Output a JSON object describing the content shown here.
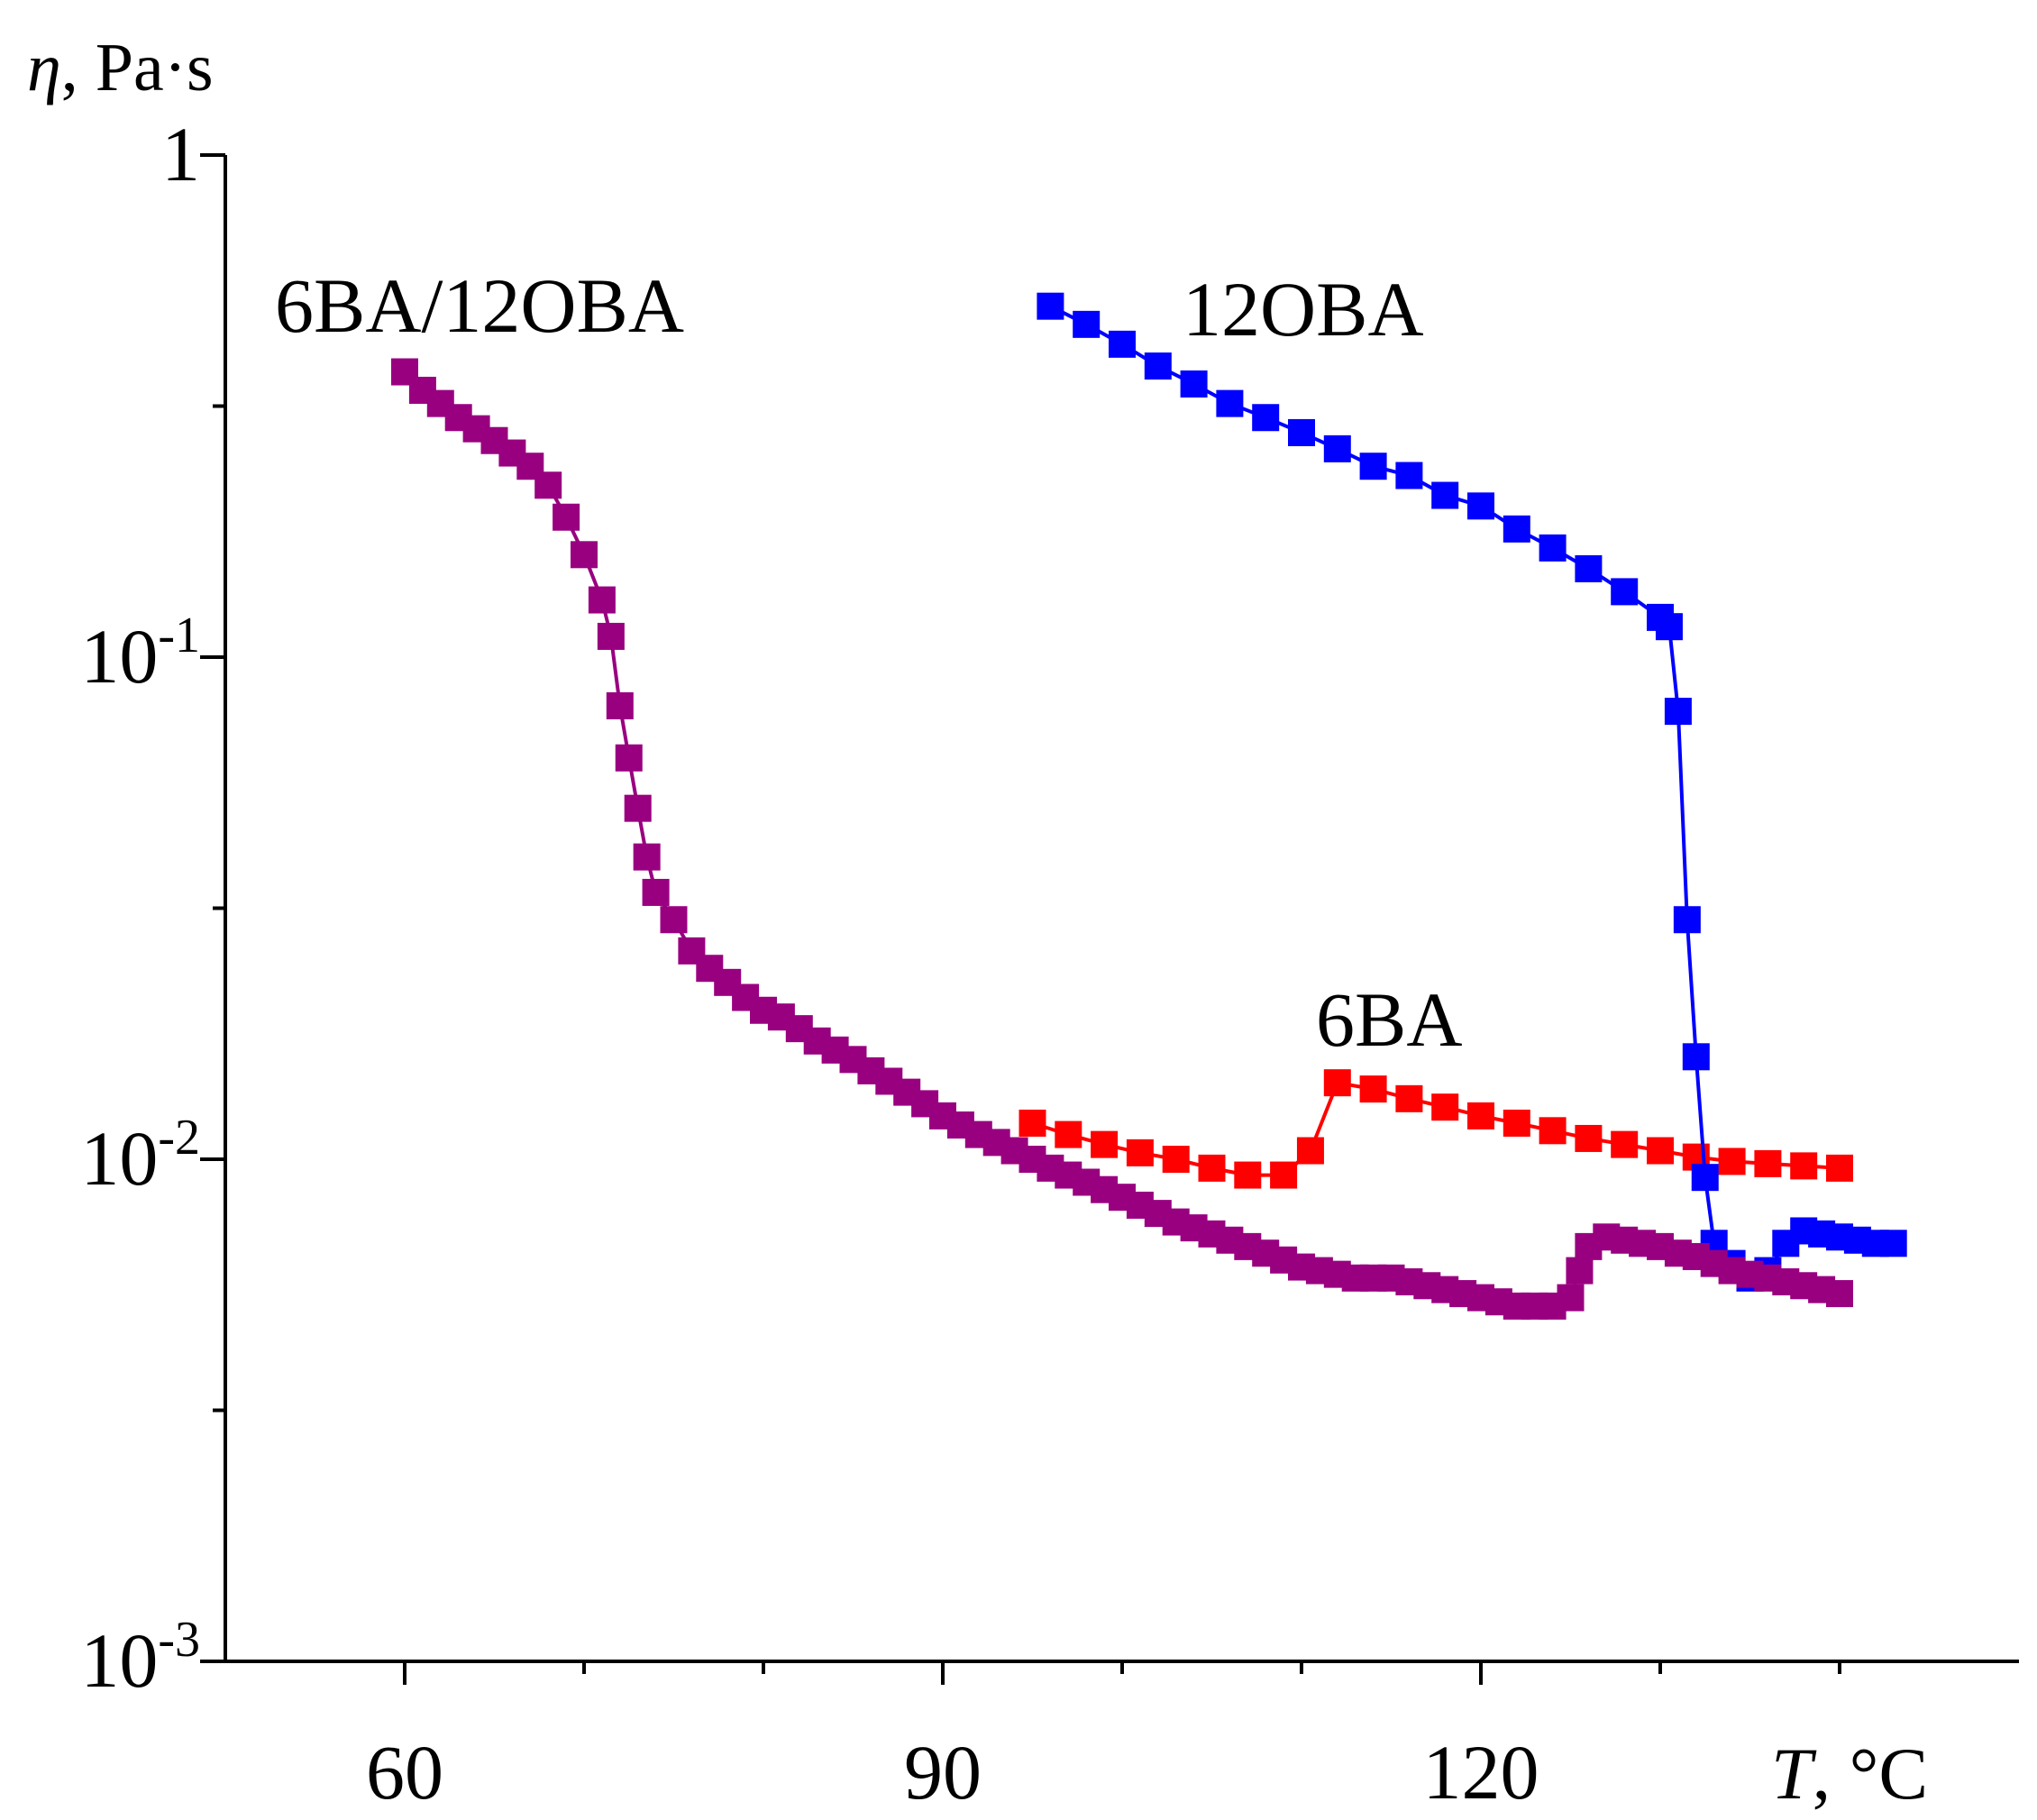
{
  "chart_data": {
    "type": "scatter",
    "title": "",
    "ylabel_symbol": "η",
    "ylabel_unit": ", Pa·s",
    "xlabel_symbol": "T",
    "xlabel_unit": ", °C",
    "xlim": [
      50,
      150
    ],
    "ylim": [
      0.001,
      1
    ],
    "yscale": "log",
    "x_ticks": [
      60,
      90,
      120
    ],
    "x_tick_labels": [
      "60",
      "90",
      "120"
    ],
    "y_ticks": [
      {
        "value": 1,
        "base": "1",
        "exp": ""
      },
      {
        "value": 0.1,
        "base": "10",
        "exp": "-1"
      },
      {
        "value": 0.01,
        "base": "10",
        "exp": "-2"
      },
      {
        "value": 0.001,
        "base": "10",
        "exp": "-3"
      }
    ],
    "series": [
      {
        "name": "12OBA",
        "color": "#0000ff",
        "points": [
          [
            96,
            0.5
          ],
          [
            98,
            0.46
          ],
          [
            100,
            0.42
          ],
          [
            102,
            0.38
          ],
          [
            104,
            0.35
          ],
          [
            106,
            0.32
          ],
          [
            108,
            0.3
          ],
          [
            110,
            0.28
          ],
          [
            112,
            0.26
          ],
          [
            114,
            0.24
          ],
          [
            116,
            0.23
          ],
          [
            118,
            0.21
          ],
          [
            120,
            0.2
          ],
          [
            122,
            0.18
          ],
          [
            124,
            0.165
          ],
          [
            126,
            0.15
          ],
          [
            128,
            0.135
          ],
          [
            130,
            0.12
          ],
          [
            130.5,
            0.115
          ],
          [
            131,
            0.078
          ],
          [
            131.5,
            0.03
          ],
          [
            132,
            0.016
          ],
          [
            132.5,
            0.0092
          ],
          [
            133,
            0.0068
          ],
          [
            134,
            0.0062
          ],
          [
            135,
            0.0058
          ],
          [
            136,
            0.006
          ],
          [
            137,
            0.0068
          ],
          [
            138,
            0.0072
          ],
          [
            139,
            0.0071
          ],
          [
            140,
            0.007
          ],
          [
            141,
            0.0069
          ],
          [
            142,
            0.0068
          ],
          [
            143,
            0.0068
          ]
        ]
      },
      {
        "name": "6BA",
        "color": "#ff0000",
        "points": [
          [
            95,
            0.0118
          ],
          [
            97,
            0.0112
          ],
          [
            99,
            0.0107
          ],
          [
            101,
            0.0103
          ],
          [
            103,
            0.01
          ],
          [
            105,
            0.0096
          ],
          [
            107,
            0.0093
          ],
          [
            109,
            0.0093
          ],
          [
            110.5,
            0.0104
          ],
          [
            112,
            0.0142
          ],
          [
            114,
            0.0138
          ],
          [
            116,
            0.0132
          ],
          [
            118,
            0.0127
          ],
          [
            120,
            0.0122
          ],
          [
            122,
            0.0118
          ],
          [
            124,
            0.0114
          ],
          [
            126,
            0.011
          ],
          [
            128,
            0.0107
          ],
          [
            130,
            0.0104
          ],
          [
            132,
            0.0101
          ],
          [
            134,
            0.0099
          ],
          [
            136,
            0.0098
          ],
          [
            138,
            0.0097
          ],
          [
            140,
            0.0096
          ]
        ]
      },
      {
        "name": "6BA/12OBA",
        "color": "#990080",
        "points": [
          [
            60,
            0.37
          ],
          [
            61,
            0.34
          ],
          [
            62,
            0.32
          ],
          [
            63,
            0.3
          ],
          [
            64,
            0.285
          ],
          [
            65,
            0.27
          ],
          [
            66,
            0.255
          ],
          [
            67,
            0.24
          ],
          [
            68,
            0.22
          ],
          [
            69,
            0.19
          ],
          [
            70,
            0.16
          ],
          [
            71,
            0.13
          ],
          [
            71.5,
            0.11
          ],
          [
            72,
            0.08
          ],
          [
            72.5,
            0.063
          ],
          [
            73,
            0.05
          ],
          [
            73.5,
            0.04
          ],
          [
            74,
            0.034
          ],
          [
            75,
            0.03
          ],
          [
            76,
            0.026
          ],
          [
            77,
            0.024
          ],
          [
            78,
            0.0225
          ],
          [
            79,
            0.021
          ],
          [
            80,
            0.0198
          ],
          [
            81,
            0.0192
          ],
          [
            82,
            0.0182
          ],
          [
            83,
            0.0172
          ],
          [
            84,
            0.0165
          ],
          [
            85,
            0.0158
          ],
          [
            86,
            0.015
          ],
          [
            87,
            0.0143
          ],
          [
            88,
            0.0136
          ],
          [
            89,
            0.0129
          ],
          [
            90,
            0.0122
          ],
          [
            91,
            0.0117
          ],
          [
            92,
            0.0112
          ],
          [
            93,
            0.0108
          ],
          [
            94,
            0.0104
          ],
          [
            95,
            0.01
          ],
          [
            96,
            0.0096
          ],
          [
            97,
            0.0093
          ],
          [
            98,
            0.009
          ],
          [
            99,
            0.0087
          ],
          [
            100,
            0.0084
          ],
          [
            101,
            0.0081
          ],
          [
            102,
            0.0078
          ],
          [
            103,
            0.0075
          ],
          [
            104,
            0.0073
          ],
          [
            105,
            0.0071
          ],
          [
            106,
            0.0069
          ],
          [
            107,
            0.0067
          ],
          [
            108,
            0.0065
          ],
          [
            109,
            0.0063
          ],
          [
            110,
            0.0061
          ],
          [
            111,
            0.006
          ],
          [
            112,
            0.0059
          ],
          [
            113,
            0.0058
          ],
          [
            114,
            0.0058
          ],
          [
            115,
            0.0058
          ],
          [
            116,
            0.0057
          ],
          [
            117,
            0.0056
          ],
          [
            118,
            0.0055
          ],
          [
            119,
            0.0054
          ],
          [
            120,
            0.0053
          ],
          [
            121,
            0.0052
          ],
          [
            122,
            0.0051
          ],
          [
            123,
            0.0051
          ],
          [
            124,
            0.0051
          ],
          [
            125,
            0.0053
          ],
          [
            125.5,
            0.006
          ],
          [
            126,
            0.0067
          ],
          [
            127,
            0.007
          ],
          [
            128,
            0.0069
          ],
          [
            129,
            0.0068
          ],
          [
            130,
            0.0067
          ],
          [
            131,
            0.0065
          ],
          [
            132,
            0.0064
          ],
          [
            133,
            0.0062
          ],
          [
            134,
            0.006
          ],
          [
            135,
            0.0059
          ],
          [
            136,
            0.0058
          ],
          [
            137,
            0.0057
          ],
          [
            138,
            0.0056
          ],
          [
            139,
            0.0055
          ],
          [
            140,
            0.0054
          ]
        ]
      }
    ],
    "annotations": [
      {
        "text": "12OBA",
        "series": "12OBA"
      },
      {
        "text": "6BA",
        "series": "6BA"
      },
      {
        "text": "6BA/12OBA",
        "series": "6BA/12OBA"
      }
    ]
  }
}
